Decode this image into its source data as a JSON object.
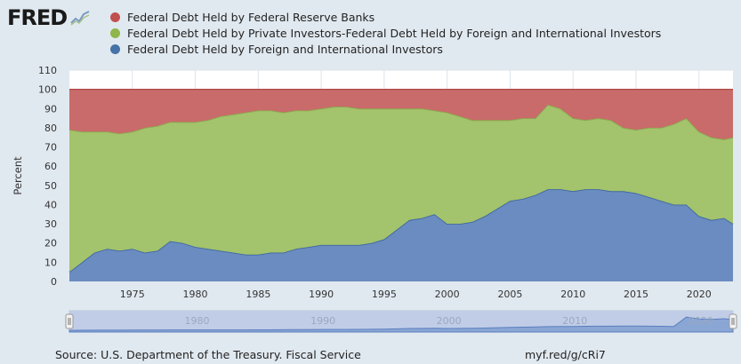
{
  "brand": {
    "logo_text": "FRED"
  },
  "legend": {
    "items": [
      {
        "label": "Federal Debt Held by Federal Reserve Banks",
        "color": "#c0504d"
      },
      {
        "label": "Federal Debt Held by Private Investors-Federal Debt Held by Foreign and International Investors",
        "color": "#8fb54b"
      },
      {
        "label": "Federal Debt Held by Foreign and International Investors",
        "color": "#4572a7"
      }
    ]
  },
  "footer": {
    "source": "Source: U.S. Department of the Treasury. Fiscal Service",
    "shortlink": "myf.red/g/cRi7"
  },
  "chart_data": {
    "type": "area",
    "stacked": true,
    "ylabel": "Percent",
    "xlabel": "",
    "xlim": [
      1970,
      2022.7
    ],
    "ylim": [
      0,
      110
    ],
    "yticks": [
      0,
      10,
      20,
      30,
      40,
      50,
      60,
      70,
      80,
      90,
      100,
      110
    ],
    "xticks": [
      1975,
      1980,
      1985,
      1990,
      1995,
      2000,
      2005,
      2010,
      2015,
      2020
    ],
    "grid": true,
    "navigator_ticks": [
      1980,
      1990,
      2000,
      2010,
      2020
    ],
    "x": [
      1970,
      1971,
      1972,
      1973,
      1974,
      1975,
      1976,
      1977,
      1978,
      1979,
      1980,
      1981,
      1982,
      1983,
      1984,
      1985,
      1986,
      1987,
      1988,
      1989,
      1990,
      1991,
      1992,
      1993,
      1994,
      1995,
      1996,
      1997,
      1998,
      1999,
      2000,
      2001,
      2002,
      2003,
      2004,
      2005,
      2006,
      2007,
      2008,
      2009,
      2010,
      2011,
      2012,
      2013,
      2014,
      2015,
      2016,
      2017,
      2018,
      2019,
      2020,
      2021,
      2022,
      2022.7
    ],
    "series": [
      {
        "name": "Federal Debt Held by Foreign and International Investors",
        "values": [
          5,
          10,
          15,
          17,
          16,
          17,
          15,
          16,
          21,
          20,
          18,
          17,
          16,
          15,
          14,
          14,
          15,
          15,
          17,
          18,
          19,
          19,
          19,
          19,
          20,
          22,
          27,
          32,
          33,
          35,
          30,
          30,
          31,
          34,
          38,
          42,
          43,
          45,
          48,
          48,
          47,
          48,
          48,
          47,
          47,
          46,
          44,
          42,
          40,
          40,
          34,
          32,
          33,
          30
        ]
      },
      {
        "name": "Federal Debt Held by Private Investors-Federal Debt Held by Foreign and International Investors",
        "values": [
          74,
          68,
          63,
          61,
          61,
          61,
          65,
          65,
          62,
          63,
          65,
          67,
          70,
          72,
          74,
          75,
          74,
          73,
          72,
          71,
          71,
          72,
          72,
          71,
          70,
          68,
          63,
          58,
          57,
          54,
          58,
          56,
          53,
          50,
          46,
          42,
          42,
          40,
          44,
          42,
          38,
          36,
          37,
          37,
          33,
          33,
          36,
          38,
          42,
          45,
          44,
          43,
          41,
          45
        ]
      },
      {
        "name": "Federal Debt Held by Federal Reserve Banks",
        "values": [
          21,
          22,
          22,
          22,
          23,
          22,
          20,
          19,
          17,
          17,
          17,
          16,
          14,
          13,
          12,
          11,
          11,
          12,
          11,
          11,
          10,
          9,
          9,
          10,
          10,
          10,
          10,
          10,
          10,
          11,
          12,
          14,
          16,
          16,
          16,
          16,
          15,
          15,
          8,
          10,
          15,
          16,
          15,
          16,
          20,
          21,
          20,
          20,
          18,
          15,
          22,
          25,
          26,
          25
        ]
      }
    ]
  }
}
